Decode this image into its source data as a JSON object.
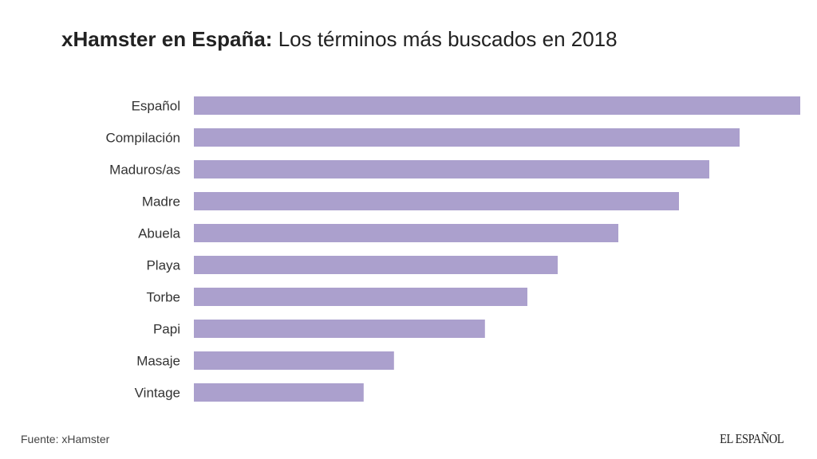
{
  "title_bold": "xHamster en España:",
  "title_rest": "Los términos más buscados en 2018",
  "source_label": "Fuente:",
  "source_value": "xHamster",
  "logo": "EL ESPAÑOL",
  "chart_data": {
    "type": "bar",
    "orientation": "horizontal",
    "title": "xHamster en España: Los términos más buscados en 2018",
    "categories": [
      "Español",
      "Compilación",
      "Maduros/as",
      "Madre",
      "Abuela",
      "Playa",
      "Torbe",
      "Papi",
      "Masaje",
      "Vintage"
    ],
    "values": [
      100,
      90,
      85,
      80,
      70,
      60,
      55,
      48,
      33,
      28
    ],
    "value_unit": "relative length (% of largest bar, values not printed)",
    "xlim": [
      0,
      100
    ],
    "grid": false,
    "bar_color": "#aba0cd"
  }
}
